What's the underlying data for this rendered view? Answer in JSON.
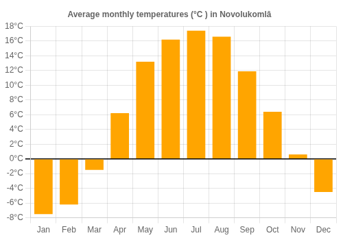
{
  "chart_data": {
    "type": "bar",
    "title": "Average monthly temperatures (°C ) in Novolukomlâ",
    "categories": [
      "Jan",
      "Feb",
      "Mar",
      "Apr",
      "May",
      "Jun",
      "Jul",
      "Aug",
      "Sep",
      "Oct",
      "Nov",
      "Dec"
    ],
    "values": [
      -7.5,
      -6.2,
      -1.5,
      6.2,
      13.2,
      16.2,
      17.4,
      16.6,
      11.9,
      6.4,
      0.6,
      -4.5
    ],
    "color": "#FFA500",
    "ylim": [
      -8,
      18
    ],
    "yticks": [
      {
        "value": -8,
        "label": "-8°C"
      },
      {
        "value": -6,
        "label": "-6°C"
      },
      {
        "value": -4,
        "label": "-4°C"
      },
      {
        "value": -2,
        "label": "-2°C"
      },
      {
        "value": 0,
        "label": "0°C"
      },
      {
        "value": 2,
        "label": "2°C"
      },
      {
        "value": 4,
        "label": "4°C"
      },
      {
        "value": 6,
        "label": "6°C"
      },
      {
        "value": 8,
        "label": "8°C"
      },
      {
        "value": 10,
        "label": "10°C"
      },
      {
        "value": 12,
        "label": "12°C"
      },
      {
        "value": 14,
        "label": "14°C"
      },
      {
        "value": 16,
        "label": "16°C"
      },
      {
        "value": 18,
        "label": "18°C"
      }
    ],
    "grid": true
  }
}
